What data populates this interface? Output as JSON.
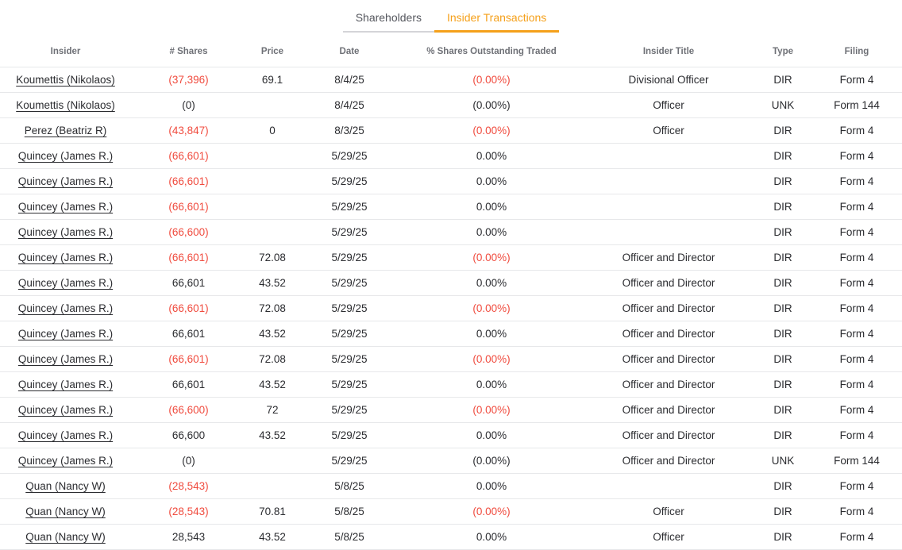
{
  "tabs": [
    {
      "label": "Shareholders",
      "active": false
    },
    {
      "label": "Insider Transactions",
      "active": true
    }
  ],
  "colors": {
    "accent_orange": "#f5a01a",
    "negative_red": "#f04b3e",
    "header_gray": "#6e7076",
    "row_border": "#e7e8ea"
  },
  "table": {
    "columns": [
      "Insider",
      "# Shares",
      "Price",
      "Date",
      "% Shares Outstanding Traded",
      "Insider Title",
      "Type",
      "Filing"
    ],
    "rows": [
      {
        "insider": "Koumettis (Nikolaos)",
        "shares": "(37,396)",
        "shares_negative": true,
        "price": "69.1",
        "date": "8/4/25",
        "pct": "(0.00%)",
        "pct_negative": true,
        "title": "Divisional Officer",
        "type": "DIR",
        "filing": "Form 4"
      },
      {
        "insider": "Koumettis (Nikolaos)",
        "shares": "(0)",
        "shares_negative": false,
        "price": "",
        "date": "8/4/25",
        "pct": "(0.00%)",
        "pct_negative": false,
        "title": "Officer",
        "type": "UNK",
        "filing": "Form 144"
      },
      {
        "insider": "Perez (Beatriz R)",
        "shares": "(43,847)",
        "shares_negative": true,
        "price": "0",
        "date": "8/3/25",
        "pct": "(0.00%)",
        "pct_negative": true,
        "title": "Officer",
        "type": "DIR",
        "filing": "Form 4"
      },
      {
        "insider": "Quincey (James R.)",
        "shares": "(66,601)",
        "shares_negative": true,
        "price": "",
        "date": "5/29/25",
        "pct": "0.00%",
        "pct_negative": false,
        "title": "",
        "type": "DIR",
        "filing": "Form 4"
      },
      {
        "insider": "Quincey (James R.)",
        "shares": "(66,601)",
        "shares_negative": true,
        "price": "",
        "date": "5/29/25",
        "pct": "0.00%",
        "pct_negative": false,
        "title": "",
        "type": "DIR",
        "filing": "Form 4"
      },
      {
        "insider": "Quincey (James R.)",
        "shares": "(66,601)",
        "shares_negative": true,
        "price": "",
        "date": "5/29/25",
        "pct": "0.00%",
        "pct_negative": false,
        "title": "",
        "type": "DIR",
        "filing": "Form 4"
      },
      {
        "insider": "Quincey (James R.)",
        "shares": "(66,600)",
        "shares_negative": true,
        "price": "",
        "date": "5/29/25",
        "pct": "0.00%",
        "pct_negative": false,
        "title": "",
        "type": "DIR",
        "filing": "Form 4"
      },
      {
        "insider": "Quincey (James R.)",
        "shares": "(66,601)",
        "shares_negative": true,
        "price": "72.08",
        "date": "5/29/25",
        "pct": "(0.00%)",
        "pct_negative": true,
        "title": "Officer and Director",
        "type": "DIR",
        "filing": "Form 4"
      },
      {
        "insider": "Quincey (James R.)",
        "shares": "66,601",
        "shares_negative": false,
        "price": "43.52",
        "date": "5/29/25",
        "pct": "0.00%",
        "pct_negative": false,
        "title": "Officer and Director",
        "type": "DIR",
        "filing": "Form 4"
      },
      {
        "insider": "Quincey (James R.)",
        "shares": "(66,601)",
        "shares_negative": true,
        "price": "72.08",
        "date": "5/29/25",
        "pct": "(0.00%)",
        "pct_negative": true,
        "title": "Officer and Director",
        "type": "DIR",
        "filing": "Form 4"
      },
      {
        "insider": "Quincey (James R.)",
        "shares": "66,601",
        "shares_negative": false,
        "price": "43.52",
        "date": "5/29/25",
        "pct": "0.00%",
        "pct_negative": false,
        "title": "Officer and Director",
        "type": "DIR",
        "filing": "Form 4"
      },
      {
        "insider": "Quincey (James R.)",
        "shares": "(66,601)",
        "shares_negative": true,
        "price": "72.08",
        "date": "5/29/25",
        "pct": "(0.00%)",
        "pct_negative": true,
        "title": "Officer and Director",
        "type": "DIR",
        "filing": "Form 4"
      },
      {
        "insider": "Quincey (James R.)",
        "shares": "66,601",
        "shares_negative": false,
        "price": "43.52",
        "date": "5/29/25",
        "pct": "0.00%",
        "pct_negative": false,
        "title": "Officer and Director",
        "type": "DIR",
        "filing": "Form 4"
      },
      {
        "insider": "Quincey (James R.)",
        "shares": "(66,600)",
        "shares_negative": true,
        "price": "72",
        "date": "5/29/25",
        "pct": "(0.00%)",
        "pct_negative": true,
        "title": "Officer and Director",
        "type": "DIR",
        "filing": "Form 4"
      },
      {
        "insider": "Quincey (James R.)",
        "shares": "66,600",
        "shares_negative": false,
        "price": "43.52",
        "date": "5/29/25",
        "pct": "0.00%",
        "pct_negative": false,
        "title": "Officer and Director",
        "type": "DIR",
        "filing": "Form 4"
      },
      {
        "insider": "Quincey (James R.)",
        "shares": "(0)",
        "shares_negative": false,
        "price": "",
        "date": "5/29/25",
        "pct": "(0.00%)",
        "pct_negative": false,
        "title": "Officer and Director",
        "type": "UNK",
        "filing": "Form 144"
      },
      {
        "insider": "Quan (Nancy W)",
        "shares": "(28,543)",
        "shares_negative": true,
        "price": "",
        "date": "5/8/25",
        "pct": "0.00%",
        "pct_negative": false,
        "title": "",
        "type": "DIR",
        "filing": "Form 4"
      },
      {
        "insider": "Quan (Nancy W)",
        "shares": "(28,543)",
        "shares_negative": true,
        "price": "70.81",
        "date": "5/8/25",
        "pct": "(0.00%)",
        "pct_negative": true,
        "title": "Officer",
        "type": "DIR",
        "filing": "Form 4"
      },
      {
        "insider": "Quan (Nancy W)",
        "shares": "28,543",
        "shares_negative": false,
        "price": "43.52",
        "date": "5/8/25",
        "pct": "0.00%",
        "pct_negative": false,
        "title": "Officer",
        "type": "DIR",
        "filing": "Form 4"
      }
    ]
  }
}
